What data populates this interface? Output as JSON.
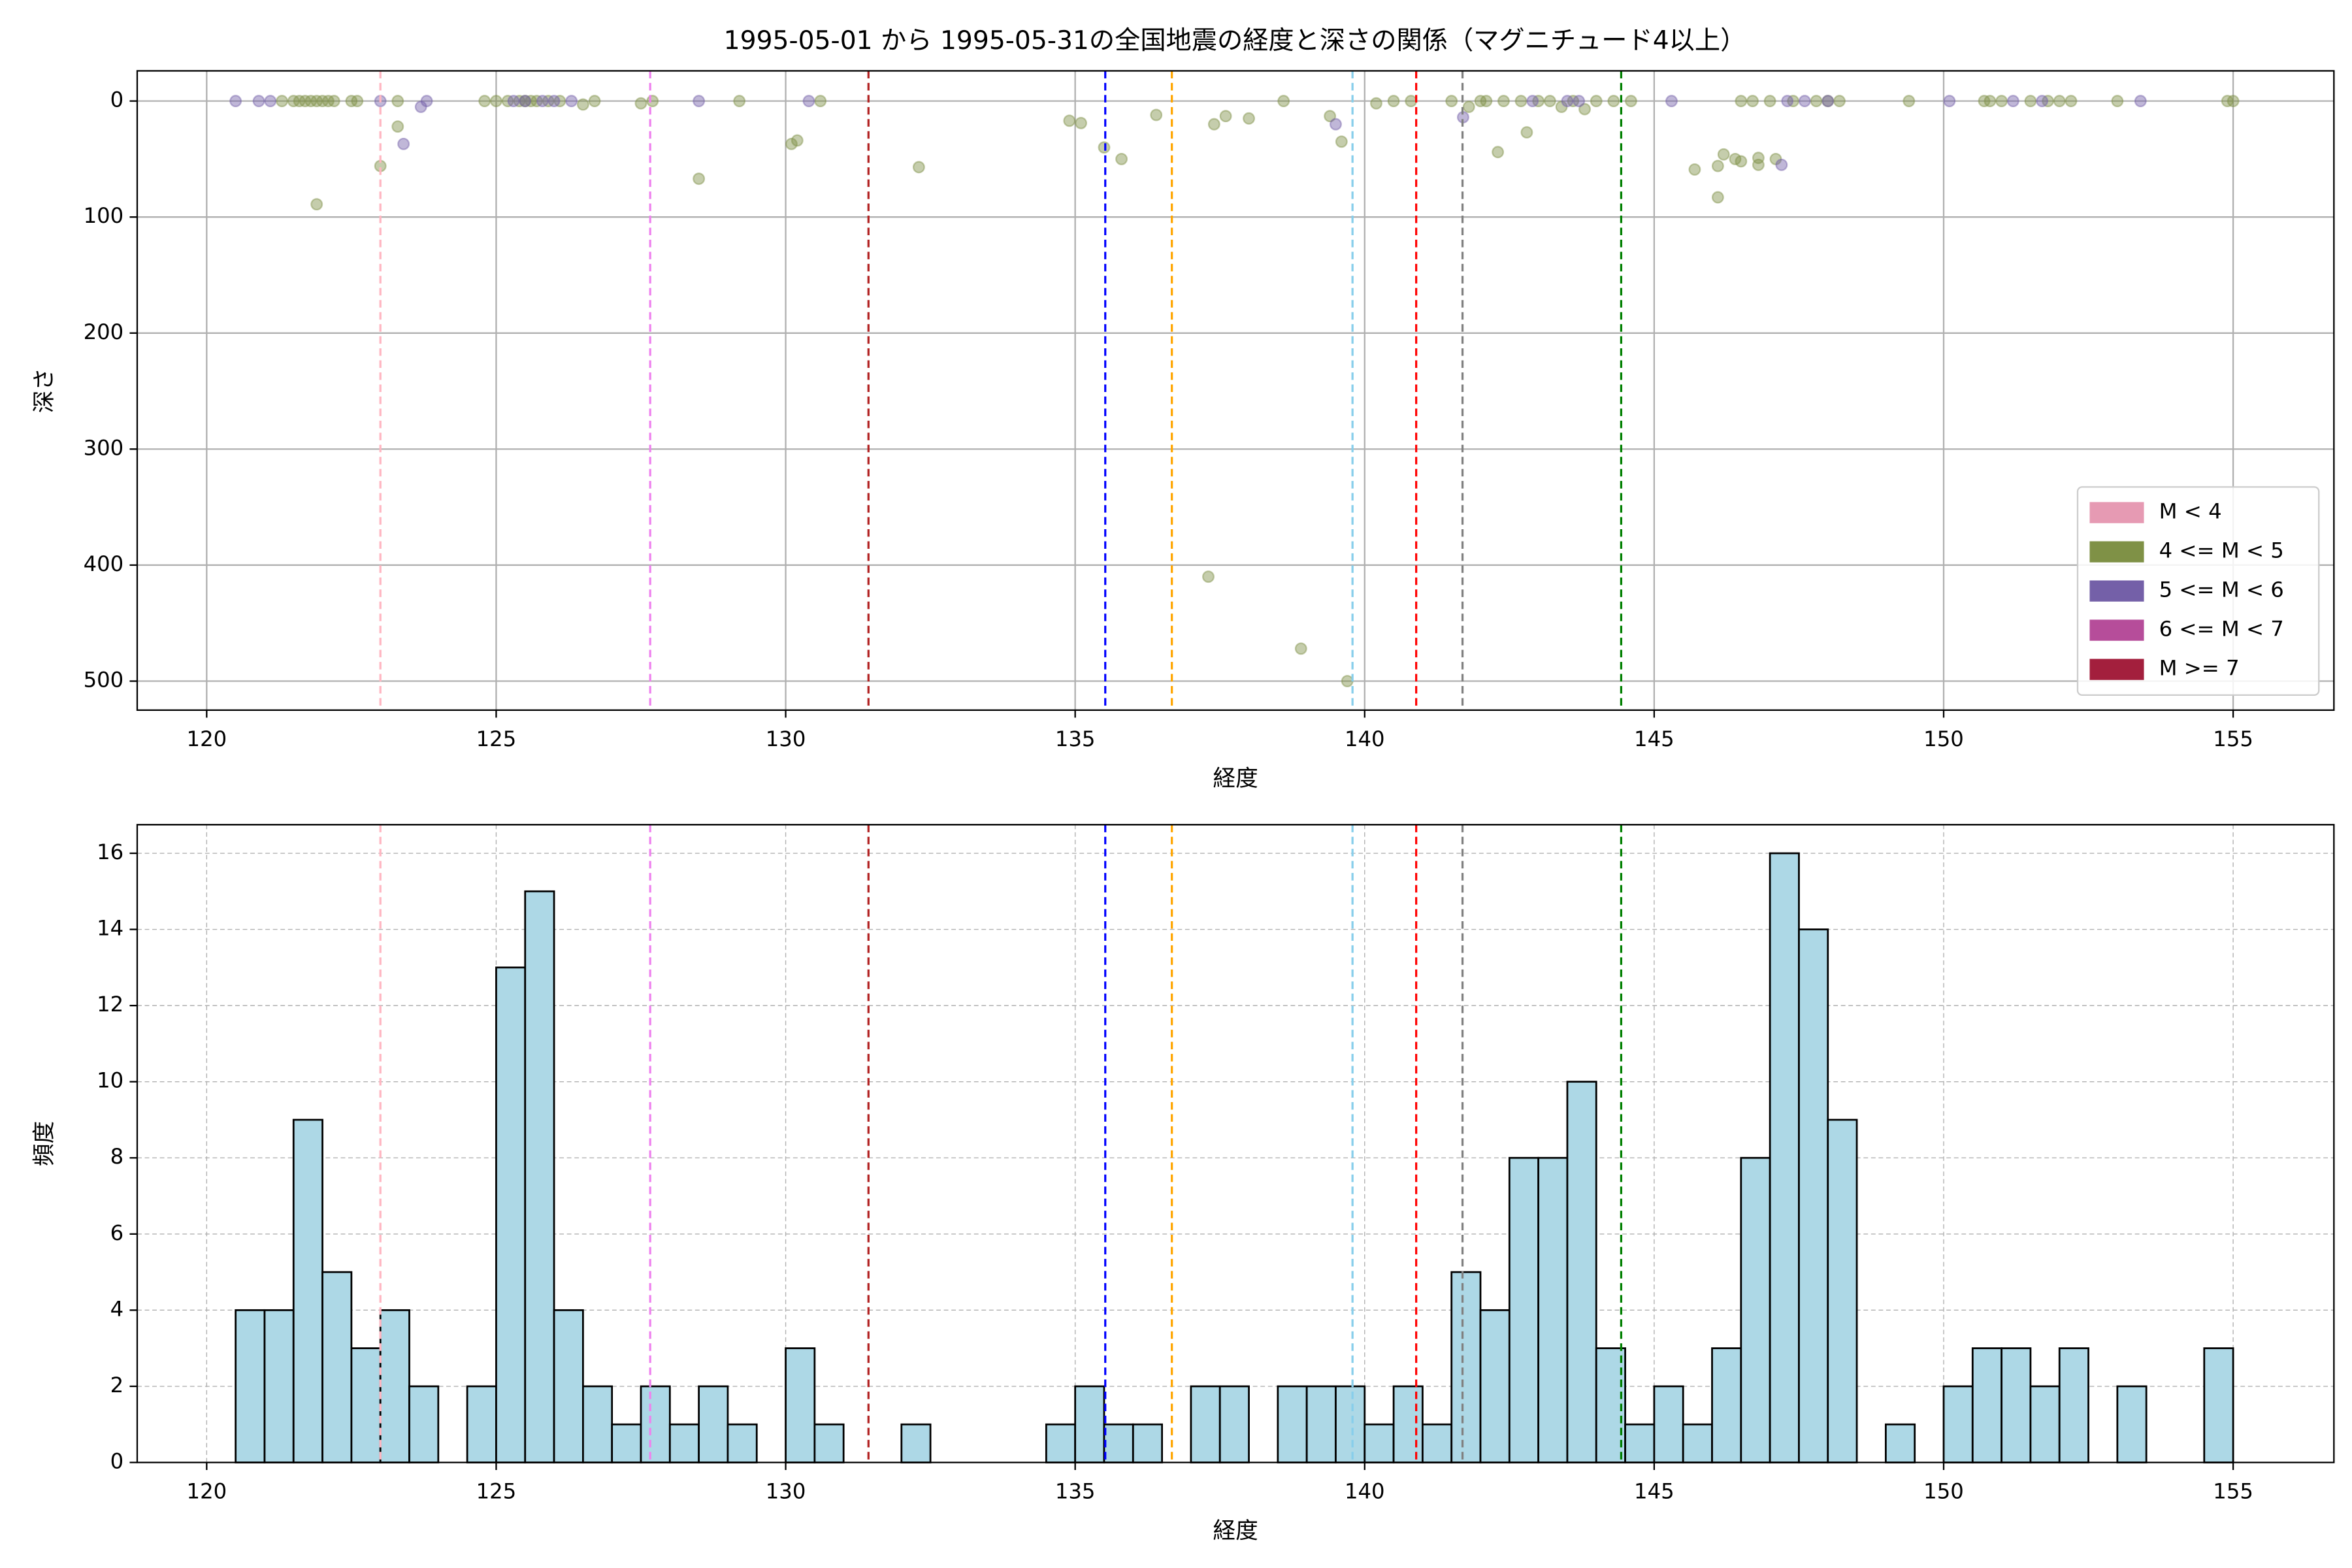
{
  "chart_data": [
    {
      "type": "scatter",
      "title": "1995-05-01 から 1995-05-31の全国地震の経度と深さの関係（マグニチュード4以上）",
      "xlabel": "経度",
      "ylabel": "深さ",
      "xlim": [
        118.8,
        156.74
      ],
      "ylim": [
        525,
        -26
      ],
      "xticks": [
        120,
        125,
        130,
        135,
        140,
        145,
        150,
        155
      ],
      "yticks": [
        0,
        100,
        200,
        300,
        400,
        500
      ],
      "grid": true,
      "legend": "lower right",
      "alpha": 0.45,
      "series": [
        {
          "name": "M < 4",
          "color": "#e69ab3",
          "x": [],
          "values": []
        },
        {
          "name": "4 <= M < 5",
          "color": "#7f9146",
          "x": [
            121.3,
            121.5,
            121.6,
            121.7,
            121.8,
            121.9,
            122.0,
            122.1,
            122.2,
            122.5,
            122.6,
            121.9,
            123.0,
            123.3,
            123.3,
            124.8,
            125.0,
            125.2,
            125.4,
            125.5,
            125.6,
            125.7,
            125.9,
            126.1,
            126.5,
            126.7,
            127.5,
            127.7,
            128.5,
            129.2,
            130.1,
            130.2,
            130.6,
            132.3,
            134.9,
            135.1,
            135.5,
            135.8,
            136.4,
            137.3,
            137.4,
            137.6,
            138.0,
            138.6,
            138.9,
            139.4,
            139.6,
            139.7,
            140.2,
            140.5,
            140.8,
            141.5,
            141.8,
            142.0,
            142.1,
            142.3,
            142.4,
            142.8,
            142.7,
            143.0,
            143.2,
            143.4,
            143.6,
            143.8,
            144.0,
            144.3,
            144.6,
            145.7,
            146.1,
            146.1,
            146.2,
            146.4,
            146.5,
            146.8,
            146.8,
            147.1,
            146.5,
            146.7,
            147.0,
            147.4,
            147.8,
            148.0,
            148.2,
            149.4,
            150.7,
            150.8,
            151.0,
            151.5,
            151.8,
            152.0,
            152.2,
            153.0,
            154.9,
            155.0
          ],
          "values": [
            0,
            0,
            0,
            0,
            0,
            0,
            0,
            0,
            0,
            0,
            0,
            89,
            56,
            22,
            0,
            0,
            0,
            0,
            0,
            0,
            0,
            0,
            0,
            0,
            3,
            0,
            2,
            0,
            67,
            0,
            37,
            34,
            0,
            57,
            17,
            19,
            40,
            50,
            12,
            410,
            20,
            13,
            15,
            0,
            472,
            13,
            35,
            500,
            2,
            0,
            0,
            0,
            5,
            0,
            0,
            44,
            0,
            27,
            0,
            0,
            0,
            5,
            0,
            7,
            0,
            0,
            0,
            59,
            83,
            56,
            46,
            50,
            52,
            55,
            49,
            50,
            0,
            0,
            0,
            0,
            0,
            0,
            0,
            0,
            0,
            0,
            0,
            0,
            0,
            0,
            0,
            0,
            0,
            0
          ]
        },
        {
          "name": "5 <= M < 6",
          "color": "#7460a8",
          "x": [
            120.5,
            120.9,
            121.1,
            123.0,
            123.4,
            123.7,
            123.8,
            125.3,
            125.5,
            125.8,
            126.0,
            126.3,
            128.5,
            130.4,
            139.5,
            141.7,
            142.9,
            143.5,
            143.7,
            145.3,
            147.2,
            147.3,
            147.6,
            148.0,
            150.1,
            151.2,
            151.7,
            153.4
          ],
          "values": [
            0,
            0,
            0,
            0,
            37,
            5,
            0,
            0,
            0,
            0,
            0,
            0,
            0,
            0,
            20,
            14,
            0,
            0,
            0,
            0,
            55,
            0,
            0,
            0,
            0,
            0,
            0,
            0
          ]
        },
        {
          "name": "6 <= M < 7",
          "color": "#b64d9a",
          "x": [],
          "values": []
        },
        {
          "name": "M >= 7",
          "color": "#a31f3d",
          "x": [],
          "values": []
        }
      ],
      "vlines": [
        {
          "x": 123.0,
          "color": "#ffb6c1"
        },
        {
          "x": 127.66,
          "color": "#ee82ee"
        },
        {
          "x": 131.43,
          "color": "#b22222"
        },
        {
          "x": 135.52,
          "color": "#0000ff"
        },
        {
          "x": 136.67,
          "color": "#ffa500"
        },
        {
          "x": 139.79,
          "color": "#87ceeb"
        },
        {
          "x": 140.89,
          "color": "#ff0000"
        },
        {
          "x": 141.69,
          "color": "#808080"
        },
        {
          "x": 144.43,
          "color": "#008000"
        }
      ]
    },
    {
      "type": "histogram",
      "xlabel": "経度",
      "ylabel": "頻度",
      "xlim": [
        118.8,
        156.74
      ],
      "ylim": [
        0,
        16.75
      ],
      "xticks": [
        120,
        125,
        130,
        135,
        140,
        145,
        150,
        155
      ],
      "yticks": [
        0,
        2,
        4,
        6,
        8,
        10,
        12,
        14,
        16
      ],
      "grid": true,
      "color": "#add8e6",
      "edgecolor": "#000000",
      "bins": [
        120.5,
        121.0,
        121.5,
        122.0,
        122.5,
        123.0,
        123.5,
        124.0,
        124.5,
        125.0,
        125.5,
        126.0,
        126.5,
        127.0,
        127.5,
        128.0,
        128.5,
        129.0,
        129.5,
        130.0,
        130.5,
        131.0,
        131.5,
        132.0,
        132.5,
        133.0,
        133.5,
        134.0,
        134.5,
        135.0,
        135.5,
        136.0,
        136.5,
        137.0,
        137.5,
        138.0,
        138.5,
        139.0,
        139.5,
        140.0,
        140.5,
        141.0,
        141.5,
        142.0,
        142.5,
        143.0,
        143.5,
        144.0,
        144.5,
        145.0,
        145.5,
        146.0,
        146.5,
        147.0,
        147.5,
        148.0,
        148.5,
        149.0,
        149.5,
        150.0,
        150.5,
        151.0,
        151.5,
        152.0,
        152.5,
        153.0,
        153.5,
        154.0,
        154.5,
        155.0
      ],
      "values": [
        4,
        4,
        9,
        5,
        3,
        4,
        2,
        0,
        2,
        13,
        15,
        4,
        2,
        1,
        2,
        1,
        2,
        1,
        0,
        3,
        1,
        0,
        0,
        1,
        0,
        0,
        0,
        0,
        1,
        2,
        1,
        1,
        0,
        2,
        2,
        0,
        2,
        2,
        2,
        1,
        2,
        1,
        5,
        4,
        8,
        8,
        10,
        3,
        1,
        2,
        1,
        3,
        8,
        16,
        14,
        9,
        0,
        1,
        0,
        2,
        3,
        3,
        2,
        3,
        0,
        2,
        0,
        0,
        3
      ],
      "vlines": [
        {
          "x": 123.0,
          "color": "#ffb6c1"
        },
        {
          "x": 127.66,
          "color": "#ee82ee"
        },
        {
          "x": 131.43,
          "color": "#b22222"
        },
        {
          "x": 135.52,
          "color": "#0000ff"
        },
        {
          "x": 136.67,
          "color": "#ffa500"
        },
        {
          "x": 139.79,
          "color": "#87ceeb"
        },
        {
          "x": 140.89,
          "color": "#ff0000"
        },
        {
          "x": 141.69,
          "color": "#808080"
        },
        {
          "x": 144.43,
          "color": "#008000"
        }
      ]
    }
  ]
}
